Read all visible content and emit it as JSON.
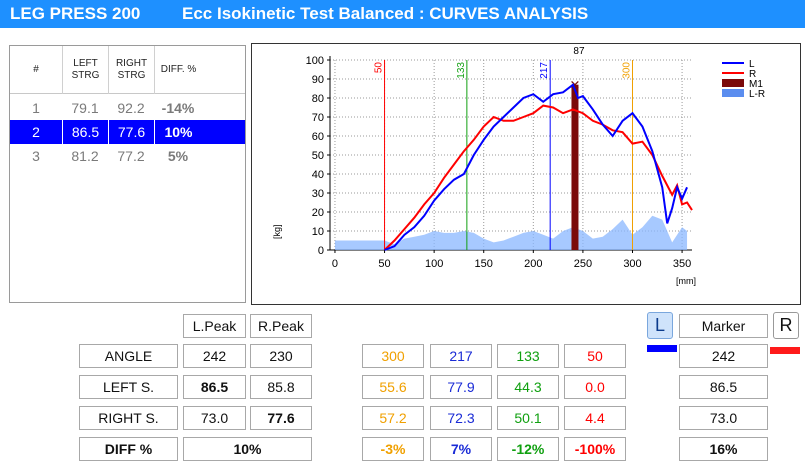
{
  "header": {
    "app": "LEG PRESS 200",
    "test": "Ecc Isokinetic Test Balanced : CURVES ANALYSIS"
  },
  "colors": {
    "title_bar": "#1e90ff",
    "left": "#0000ff",
    "right": "#ff0000",
    "marker": "#7b0a0a",
    "lr": "#5b8def",
    "orange": "#f0a000",
    "green": "#10a010",
    "blue_text": "#1a2bd6"
  },
  "trials": {
    "headers": [
      "#",
      "LEFT\nSTRG",
      "RIGHT\nSTRG",
      "DIFF. %"
    ],
    "rows": [
      {
        "n": "1",
        "left": "79.1",
        "right": "92.2",
        "diff": "-14%"
      },
      {
        "n": "2",
        "left": "86.5",
        "right": "77.6",
        "diff": "10%",
        "selected": true
      },
      {
        "n": "3",
        "left": "81.2",
        "right": "77.2",
        "diff": "5%"
      }
    ]
  },
  "chart_data": {
    "type": "line",
    "xlabel": "[mm]",
    "ylabel": "[kg]",
    "xlim": [
      -5,
      360
    ],
    "ylim": [
      0,
      100
    ],
    "xticks": [
      0,
      50,
      100,
      150,
      200,
      250,
      300,
      350
    ],
    "yticks": [
      0,
      10,
      20,
      30,
      40,
      50,
      60,
      70,
      80,
      90,
      100
    ],
    "grid": true,
    "legend": [
      "L",
      "R",
      "M1",
      "L-R"
    ],
    "markers": [
      {
        "x": 50,
        "label": "50",
        "color": "#ff0000"
      },
      {
        "x": 133,
        "label": "133",
        "color": "#10a010"
      },
      {
        "x": 217,
        "label": "217",
        "color": "#0000ff"
      },
      {
        "x": 242,
        "label": "87",
        "color": "#000000"
      },
      {
        "x": 300,
        "label": "300",
        "color": "#f0a000"
      }
    ],
    "series": [
      {
        "name": "L",
        "color": "#0000ff",
        "x": [
          50,
          60,
          70,
          80,
          90,
          100,
          110,
          120,
          130,
          140,
          150,
          160,
          170,
          180,
          190,
          200,
          210,
          220,
          230,
          240,
          245,
          250,
          260,
          270,
          280,
          290,
          300,
          310,
          320,
          330,
          335,
          340,
          345,
          350,
          355
        ],
        "y": [
          0,
          2,
          8,
          12,
          18,
          26,
          32,
          37,
          40,
          50,
          58,
          65,
          70,
          75,
          80,
          82,
          78,
          82,
          83,
          87,
          80,
          81,
          74,
          66,
          60,
          68,
          72,
          65,
          52,
          33,
          14,
          22,
          33,
          27,
          33
        ]
      },
      {
        "name": "R",
        "color": "#ff0000",
        "x": [
          50,
          60,
          70,
          80,
          90,
          100,
          110,
          120,
          130,
          140,
          150,
          160,
          170,
          180,
          190,
          200,
          210,
          220,
          230,
          240,
          250,
          260,
          270,
          280,
          290,
          300,
          310,
          320,
          330,
          340,
          345,
          350,
          355,
          360
        ],
        "y": [
          0,
          5,
          11,
          17,
          24,
          30,
          38,
          45,
          52,
          58,
          65,
          70,
          68,
          68,
          70,
          72,
          76,
          75,
          72,
          74,
          72,
          68,
          66,
          63,
          62,
          56,
          57,
          50,
          39,
          29,
          34,
          24,
          25,
          21
        ]
      },
      {
        "name": "M1",
        "color": "#7b0a0a",
        "x": [
          242
        ],
        "y": [
          87
        ]
      },
      {
        "name": "L-R",
        "color": "#5b8def",
        "x": [
          0,
          50,
          60,
          70,
          80,
          90,
          100,
          110,
          120,
          130,
          140,
          150,
          160,
          170,
          180,
          190,
          200,
          210,
          220,
          230,
          240,
          250,
          260,
          270,
          280,
          290,
          300,
          310,
          320,
          330,
          340,
          350,
          355
        ],
        "y": [
          5,
          5,
          3,
          6,
          7,
          8,
          10,
          9,
          9,
          10,
          9,
          6,
          4,
          5,
          7,
          9,
          10,
          8,
          6,
          10,
          12,
          10,
          6,
          7,
          11,
          16,
          8,
          12,
          18,
          16,
          4,
          12,
          10
        ]
      }
    ]
  },
  "stats": {
    "col_headers": {
      "l_peak": "L.Peak",
      "r_peak": "R.Peak"
    },
    "row_labels": {
      "angle": "ANGLE",
      "left": "LEFT S.",
      "right": "RIGHT S.",
      "diff": "DIFF %"
    },
    "angle": {
      "l": "242",
      "r": "230"
    },
    "left": {
      "l": "86.5",
      "r": "85.8"
    },
    "right": {
      "l": "73.0",
      "r": "77.6"
    },
    "diff": "10%",
    "markers_cols": [
      {
        "angle": "300",
        "left": "55.6",
        "right": "57.2",
        "diff": "-3%",
        "color": "#f0a000"
      },
      {
        "angle": "217",
        "left": "77.9",
        "right": "72.3",
        "diff": "7%",
        "color": "#1a2bd6"
      },
      {
        "angle": "133",
        "left": "44.3",
        "right": "50.1",
        "diff": "-12%",
        "color": "#10a010"
      },
      {
        "angle": "50",
        "left": "0.0",
        "right": "4.4",
        "diff": "-100%",
        "color": "#ff0000"
      }
    ],
    "marker_label": "Marker",
    "l_btn": "L",
    "r_btn": "R",
    "marker_values": {
      "angle": "242",
      "left": "86.5",
      "right": "73.0",
      "diff": "16%"
    }
  }
}
